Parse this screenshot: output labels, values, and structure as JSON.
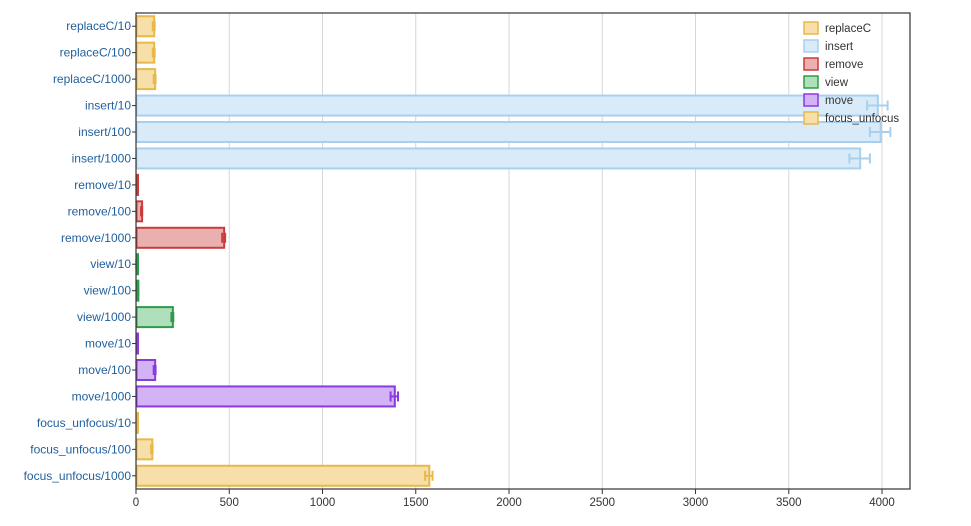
{
  "chart_data": {
    "type": "bar",
    "orientation": "horizontal",
    "categories": [
      "replaceC/10",
      "replaceC/100",
      "replaceC/1000",
      "insert/10",
      "insert/100",
      "insert/1000",
      "remove/10",
      "remove/100",
      "remove/1000",
      "view/10",
      "view/100",
      "view/1000",
      "move/10",
      "move/100",
      "move/1000",
      "focus_unfocus/10",
      "focus_unfocus/100",
      "focus_unfocus/1000"
    ],
    "series": [
      {
        "name": "replaceC",
        "color": "#e8b84a",
        "fill": "#f6dfa8",
        "points": [
          {
            "category": "replaceC/10",
            "value": 95,
            "err": 5
          },
          {
            "category": "replaceC/100",
            "value": 95,
            "err": 5
          },
          {
            "category": "replaceC/1000",
            "value": 100,
            "err": 5
          }
        ]
      },
      {
        "name": "insert",
        "color": "#a7d0ef",
        "fill": "#d9ebf9",
        "points": [
          {
            "category": "insert/10",
            "value": 3975,
            "err": 55
          },
          {
            "category": "insert/100",
            "value": 3990,
            "err": 55
          },
          {
            "category": "insert/1000",
            "value": 3880,
            "err": 55
          }
        ]
      },
      {
        "name": "remove",
        "color": "#cc3b3b",
        "fill": "#eab0b0",
        "points": [
          {
            "category": "remove/10",
            "value": 5,
            "err": 2
          },
          {
            "category": "remove/100",
            "value": 30,
            "err": 3
          },
          {
            "category": "remove/1000",
            "value": 470,
            "err": 8
          }
        ]
      },
      {
        "name": "view",
        "color": "#2e9b4a",
        "fill": "#b0dfbc",
        "points": [
          {
            "category": "view/10",
            "value": 3,
            "err": 1
          },
          {
            "category": "view/100",
            "value": 10,
            "err": 2
          },
          {
            "category": "view/1000",
            "value": 195,
            "err": 5
          }
        ]
      },
      {
        "name": "move",
        "color": "#8a3be0",
        "fill": "#d3b2f6",
        "points": [
          {
            "category": "move/10",
            "value": 6,
            "err": 2
          },
          {
            "category": "move/100",
            "value": 100,
            "err": 5
          },
          {
            "category": "move/1000",
            "value": 1385,
            "err": 20
          }
        ]
      },
      {
        "name": "focus_unfocus",
        "color": "#e8b84a",
        "fill": "#f6dfa8",
        "points": [
          {
            "category": "focus_unfocus/10",
            "value": 4,
            "err": 1
          },
          {
            "category": "focus_unfocus/100",
            "value": 85,
            "err": 4
          },
          {
            "category": "focus_unfocus/1000",
            "value": 1570,
            "err": 20
          }
        ]
      }
    ],
    "xlim": [
      0,
      4150
    ],
    "xticks": [
      0,
      500,
      1000,
      1500,
      2000,
      2500,
      3000,
      3500,
      4000
    ],
    "grid": true,
    "legend_position": "top-right",
    "title": "",
    "xlabel": "",
    "ylabel": ""
  }
}
